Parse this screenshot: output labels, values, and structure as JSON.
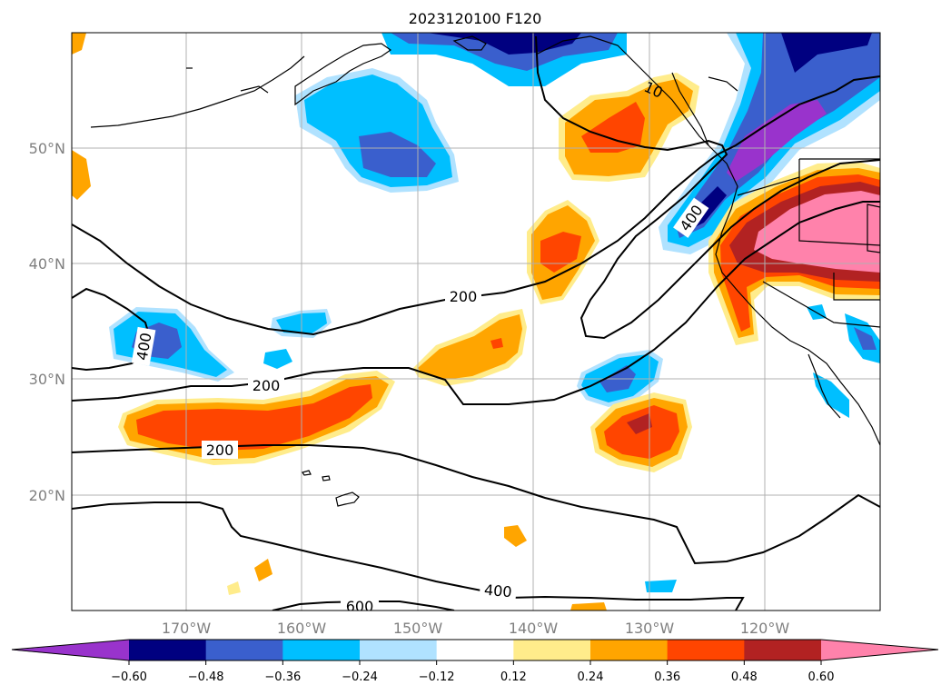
{
  "title": "2023120100 F120",
  "map": {
    "latitude_labels": [
      "50°N",
      "40°N",
      "30°N",
      "20°N"
    ],
    "longitude_labels": [
      "170°W",
      "160°W",
      "150°W",
      "140°W",
      "130°W",
      "120°W"
    ],
    "gridlines": true,
    "coastlines": true,
    "contour_labels": [
      "200",
      "200",
      "200",
      "400",
      "400",
      "400",
      "600",
      "10"
    ]
  },
  "colorbar": {
    "tick_labels": [
      "−0.60",
      "−0.48",
      "−0.36",
      "−0.24",
      "−0.12",
      "0.12",
      "0.24",
      "0.36",
      "0.48",
      "0.60"
    ],
    "colors": [
      "#9933cc",
      "#000080",
      "#3a5fcd",
      "#00bfff",
      "#b0e2ff",
      "#ffffff",
      "#ffec8b",
      "#ffa500",
      "#ff4500",
      "#b22222",
      "#ff82ab"
    ],
    "extend": "both"
  }
}
